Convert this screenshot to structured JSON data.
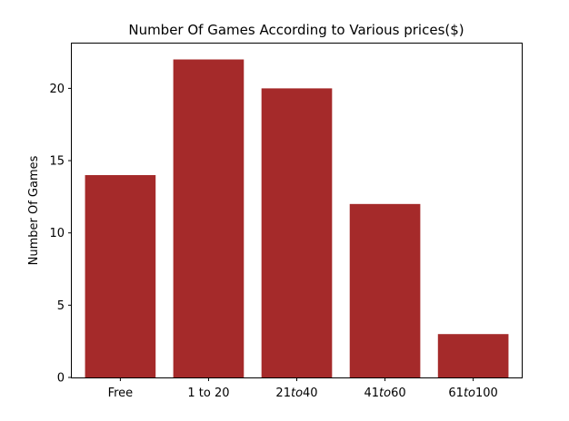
{
  "chart_data": {
    "type": "bar",
    "title": "Number Of Games According to Various prices($)",
    "xlabel": "",
    "ylabel": "Number Of Games",
    "categories": [
      "Free",
      "1 to 20",
      "21to40",
      "41to60",
      "61to100"
    ],
    "category_parts": [
      [
        {
          "t": "Free",
          "i": false
        }
      ],
      [
        {
          "t": "1 to 20",
          "i": false
        }
      ],
      [
        {
          "t": "21",
          "i": false
        },
        {
          "t": "to",
          "i": true
        },
        {
          "t": "40",
          "i": false
        }
      ],
      [
        {
          "t": "41",
          "i": false
        },
        {
          "t": "to",
          "i": true
        },
        {
          "t": "60",
          "i": false
        }
      ],
      [
        {
          "t": "61",
          "i": false
        },
        {
          "t": "to",
          "i": true
        },
        {
          "t": "100",
          "i": false
        }
      ]
    ],
    "values": [
      14,
      22,
      20,
      12,
      3
    ],
    "ylim": [
      0,
      23.1
    ],
    "yticks": [
      0,
      5,
      10,
      15,
      20
    ],
    "bar_color": "#a52a2a",
    "grid": false,
    "legend": "none"
  }
}
